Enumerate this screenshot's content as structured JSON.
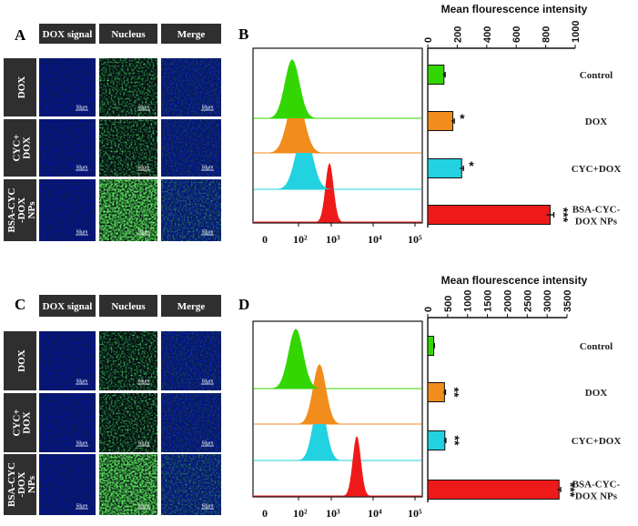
{
  "columns": [
    "DOX signal",
    "Nucleus",
    "Merge"
  ],
  "panels": [
    {
      "micro_letter": "A",
      "rows": [
        "DOX",
        "CYC+ DOX",
        "BSA-CYC -DOX NPs"
      ],
      "scale_label": "50μm",
      "flow_letter": "B",
      "bar_title": "Mean flourescence intensity",
      "ticks": [
        0,
        200,
        400,
        600,
        800,
        1000
      ],
      "flow_ticks": [
        "0",
        "10²",
        "10³",
        "10⁴",
        "10⁵"
      ],
      "bar_labels": [
        "Control",
        "DOX",
        "CYC+DOX",
        "BSA-CYC-\nDOX NPs"
      ],
      "values": [
        110,
        170,
        230,
        830
      ],
      "errors": [
        8,
        10,
        12,
        25
      ],
      "stars": [
        "",
        "*",
        "*",
        "***"
      ]
    },
    {
      "micro_letter": "C",
      "rows": [
        "DOX",
        "CYC+ DOX",
        "BSA-CYC -DOX NPs"
      ],
      "scale_label": "50μm",
      "flow_letter": "D",
      "bar_title": "Mean flourescence intensity",
      "ticks": [
        0,
        500,
        1000,
        1500,
        2000,
        2500,
        3000,
        3500
      ],
      "flow_ticks": [
        "0",
        "10²",
        "10³",
        "10⁴",
        "10⁵"
      ],
      "bar_labels": [
        "Control",
        "DOX",
        "CYC+DOX",
        "BSA-CYC-\nDOX NPs"
      ],
      "values": [
        150,
        420,
        430,
        3300
      ],
      "errors": [
        15,
        25,
        25,
        40
      ],
      "stars": [
        "",
        "**",
        "**",
        "***"
      ]
    }
  ],
  "colors": {
    "control": "#33d600",
    "dox": "#f28c1c",
    "cyc_dox": "#22d2e0",
    "nps": "#ee1a1a",
    "header_bg": "#2f2f2f",
    "tile_blue": "#0a1f86",
    "tile_dark": "#030a12"
  },
  "chart_data": [
    {
      "type": "bar",
      "title": "Mean flourescence intensity",
      "categories": [
        "Control",
        "DOX",
        "CYC+DOX",
        "BSA-CYC-DOX NPs"
      ],
      "values": [
        110,
        170,
        230,
        830
      ],
      "xlim": [
        0,
        1000
      ],
      "significance": [
        "",
        "*",
        "*",
        "***"
      ]
    },
    {
      "type": "bar",
      "title": "Mean flourescence intensity",
      "categories": [
        "Control",
        "DOX",
        "CYC+DOX",
        "BSA-CYC-DOX NPs"
      ],
      "values": [
        150,
        420,
        430,
        3300
      ],
      "xlim": [
        0,
        3500
      ],
      "significance": [
        "",
        "**",
        "**",
        "***"
      ]
    }
  ]
}
